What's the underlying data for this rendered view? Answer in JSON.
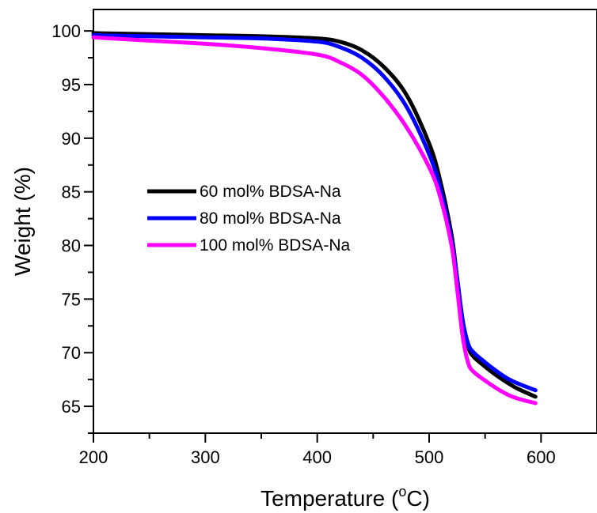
{
  "chart_data": {
    "type": "line",
    "xlabel": "Temperature (",
    "xlabel_sup": "o",
    "xlabel_unit": "C)",
    "ylabel": "Weight (%)",
    "xlim": [
      200,
      650
    ],
    "ylim": [
      62.5,
      102
    ],
    "x_ticks": [
      "200",
      "300",
      "400",
      "500",
      "600"
    ],
    "y_ticks": [
      "65",
      "70",
      "75",
      "80",
      "85",
      "90",
      "95",
      "100"
    ],
    "grid": false,
    "legend_position": "center-left",
    "series": [
      {
        "name": "60 mol% BDSA-Na",
        "color": "#000000",
        "points": [
          [
            200,
            99.8
          ],
          [
            250,
            99.7
          ],
          [
            300,
            99.6
          ],
          [
            350,
            99.5
          ],
          [
            400,
            99.3
          ],
          [
            420,
            99.0
          ],
          [
            440,
            98.2
          ],
          [
            460,
            96.6
          ],
          [
            480,
            94.0
          ],
          [
            500,
            89.5
          ],
          [
            510,
            86.0
          ],
          [
            520,
            81.0
          ],
          [
            525,
            77.0
          ],
          [
            530,
            73.0
          ],
          [
            535,
            70.5
          ],
          [
            540,
            69.6
          ],
          [
            550,
            68.7
          ],
          [
            560,
            67.9
          ],
          [
            570,
            67.2
          ],
          [
            580,
            66.6
          ],
          [
            595,
            65.9
          ]
        ]
      },
      {
        "name": "80 mol% BDSA-Na",
        "color": "#0000ff",
        "points": [
          [
            200,
            99.6
          ],
          [
            250,
            99.5
          ],
          [
            300,
            99.4
          ],
          [
            350,
            99.3
          ],
          [
            400,
            99.0
          ],
          [
            420,
            98.5
          ],
          [
            440,
            97.5
          ],
          [
            460,
            95.7
          ],
          [
            480,
            92.9
          ],
          [
            500,
            88.5
          ],
          [
            510,
            85.3
          ],
          [
            520,
            80.5
          ],
          [
            525,
            77.0
          ],
          [
            530,
            73.0
          ],
          [
            535,
            70.8
          ],
          [
            540,
            70.0
          ],
          [
            550,
            69.1
          ],
          [
            560,
            68.3
          ],
          [
            570,
            67.6
          ],
          [
            580,
            67.1
          ],
          [
            595,
            66.5
          ]
        ]
      },
      {
        "name": "100 mol% BDSA-Na",
        "color": "#ff00ff",
        "points": [
          [
            200,
            99.4
          ],
          [
            250,
            99.1
          ],
          [
            300,
            98.8
          ],
          [
            350,
            98.4
          ],
          [
            400,
            97.8
          ],
          [
            420,
            97.1
          ],
          [
            440,
            95.9
          ],
          [
            460,
            93.8
          ],
          [
            480,
            91.0
          ],
          [
            500,
            87.3
          ],
          [
            510,
            84.5
          ],
          [
            520,
            80.0
          ],
          [
            525,
            76.0
          ],
          [
            530,
            71.5
          ],
          [
            535,
            69.0
          ],
          [
            540,
            68.2
          ],
          [
            550,
            67.4
          ],
          [
            560,
            66.7
          ],
          [
            570,
            66.1
          ],
          [
            580,
            65.7
          ],
          [
            595,
            65.3
          ]
        ]
      }
    ]
  }
}
